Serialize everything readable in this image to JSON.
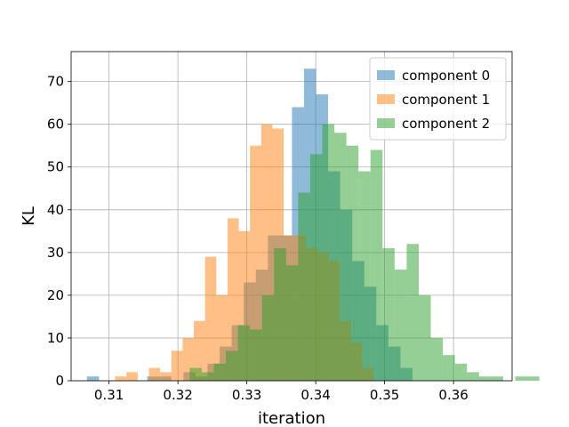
{
  "chart_data": {
    "type": "bar",
    "histogram": true,
    "xlabel": "iteration",
    "ylabel": "KL",
    "xlim": [
      0.3045,
      0.3685
    ],
    "ylim": [
      0,
      77
    ],
    "xticks": [
      0.31,
      0.32,
      0.33,
      0.34,
      0.35,
      0.36
    ],
    "xtick_labels": [
      "0.31",
      "0.32",
      "0.33",
      "0.34",
      "0.35",
      "0.36"
    ],
    "yticks": [
      0,
      10,
      20,
      30,
      40,
      50,
      60,
      70
    ],
    "ytick_labels": [
      "0",
      "10",
      "20",
      "30",
      "40",
      "50",
      "60",
      "70"
    ],
    "grid": true,
    "legend_position": "top-right",
    "series": [
      {
        "name": "component 0",
        "color": "#1f77b4",
        "opacity": 0.5,
        "bin_start": 0.3068,
        "bin_width": 0.00175,
        "counts": [
          1,
          0,
          0,
          0,
          0,
          1,
          1,
          0,
          2,
          1,
          4,
          8,
          13,
          23,
          26,
          34,
          34,
          64,
          73,
          67,
          49,
          40,
          28,
          22,
          13,
          8,
          3
        ]
      },
      {
        "name": "component 1",
        "color": "#ff7f0e",
        "opacity": 0.5,
        "bin_start": 0.3109,
        "bin_width": 0.00163,
        "counts": [
          1,
          2,
          0,
          3,
          2,
          7,
          10,
          14,
          29,
          20,
          38,
          35,
          55,
          60,
          59,
          34,
          34,
          31,
          30,
          28,
          14,
          9,
          3
        ]
      },
      {
        "name": "component 2",
        "color": "#2ca02c",
        "opacity": 0.5,
        "bin_start": 0.3217,
        "bin_width": 0.00175,
        "counts": [
          3,
          2,
          4,
          7,
          13,
          12,
          20,
          31,
          27,
          44,
          53,
          60,
          58,
          55,
          49,
          54,
          31,
          26,
          32,
          20,
          10,
          6,
          4,
          2,
          1,
          1,
          0,
          1,
          1
        ]
      }
    ]
  }
}
